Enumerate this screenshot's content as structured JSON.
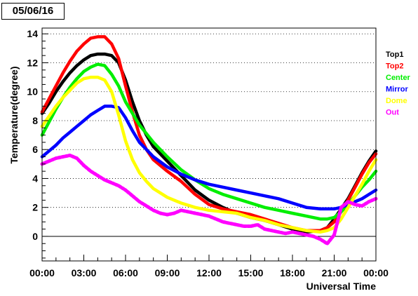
{
  "date_label": "05/06/16",
  "colors": {
    "Top1": "#000000",
    "Top2": "#ff0000",
    "Center": "#00ee00",
    "Mirror": "#0000ff",
    "Dome": "#ffff00",
    "Out": "#ff00ff"
  },
  "chart_data": {
    "type": "line",
    "title": "",
    "xlabel": "Universal Time",
    "ylabel": "Temperature(degree)",
    "xlim": [
      0,
      24
    ],
    "ylim": [
      -1.7,
      14.4
    ],
    "x_ticks": [
      {
        "v": 0,
        "label": "00:00"
      },
      {
        "v": 3,
        "label": "03:00"
      },
      {
        "v": 6,
        "label": "06:00"
      },
      {
        "v": 9,
        "label": "09:00"
      },
      {
        "v": 12,
        "label": "12:00"
      },
      {
        "v": 15,
        "label": "15:00"
      },
      {
        "v": 18,
        "label": "18:00"
      },
      {
        "v": 21,
        "label": "21:00"
      },
      {
        "v": 24,
        "label": "00:00"
      }
    ],
    "y_ticks": [
      0,
      2,
      4,
      6,
      8,
      10,
      12,
      14
    ],
    "grid": "horizontal-dotted",
    "zero_line": true,
    "legend": "right",
    "series": [
      {
        "name": "Top1",
        "color": "#000000",
        "x": [
          0,
          0.5,
          1,
          1.5,
          2,
          2.5,
          3,
          3.5,
          4,
          4.5,
          5,
          5.5,
          6,
          6.5,
          7,
          7.5,
          8,
          9,
          10,
          11,
          12,
          13,
          14,
          15,
          16,
          17,
          18,
          19,
          20,
          20.5,
          21,
          21.5,
          22,
          22.5,
          23,
          23.5,
          24
        ],
        "y": [
          8.5,
          9.2,
          10.0,
          10.7,
          11.3,
          11.8,
          12.2,
          12.5,
          12.6,
          12.6,
          12.5,
          12.0,
          10.8,
          9.3,
          8.0,
          7.0,
          6.2,
          5.2,
          4.2,
          3.2,
          2.5,
          2.0,
          1.6,
          1.3,
          1.1,
          0.8,
          0.5,
          0.3,
          0.4,
          0.6,
          1.2,
          1.9,
          2.6,
          3.5,
          4.4,
          5.2,
          5.9
        ]
      },
      {
        "name": "Top2",
        "color": "#ff0000",
        "x": [
          0,
          0.5,
          1,
          1.5,
          2,
          2.5,
          3,
          3.5,
          4,
          4.5,
          5,
          5.5,
          6,
          6.5,
          7,
          7.5,
          8,
          9,
          10,
          11,
          12,
          13,
          14,
          15,
          16,
          17,
          18,
          19,
          20,
          20.5,
          21,
          21.5,
          22,
          22.5,
          23,
          23.5,
          24
        ],
        "y": [
          8.6,
          9.5,
          10.4,
          11.3,
          12.1,
          12.8,
          13.3,
          13.7,
          13.8,
          13.8,
          13.3,
          12.3,
          10.4,
          8.6,
          7.0,
          6.0,
          5.3,
          4.5,
          3.8,
          2.9,
          2.2,
          1.9,
          1.7,
          1.5,
          1.2,
          0.9,
          0.6,
          0.4,
          0.4,
          0.6,
          1.0,
          1.7,
          2.5,
          3.4,
          4.3,
          5.1,
          5.7
        ]
      },
      {
        "name": "Center",
        "color": "#00ee00",
        "x": [
          0,
          0.5,
          1,
          1.5,
          2,
          2.5,
          3,
          3.5,
          4,
          4.5,
          5,
          5.5,
          6,
          6.5,
          7,
          7.5,
          8,
          9,
          10,
          11,
          12,
          13,
          14,
          15,
          16,
          17,
          18,
          19,
          20,
          20.5,
          21,
          21.5,
          22,
          22.5,
          23,
          23.5,
          24
        ],
        "y": [
          7.0,
          7.9,
          8.8,
          9.6,
          10.3,
          10.9,
          11.4,
          11.7,
          11.9,
          11.8,
          11.2,
          10.4,
          9.3,
          8.5,
          7.7,
          7.1,
          6.5,
          5.5,
          4.6,
          3.9,
          3.3,
          2.9,
          2.6,
          2.3,
          2.0,
          1.8,
          1.6,
          1.4,
          1.2,
          1.2,
          1.3,
          1.7,
          2.2,
          2.8,
          3.4,
          3.9,
          4.5
        ]
      },
      {
        "name": "Mirror",
        "color": "#0000ff",
        "x": [
          0,
          0.5,
          1,
          1.5,
          2,
          2.5,
          3,
          3.5,
          4,
          4.5,
          5,
          5.5,
          6,
          6.5,
          7,
          7.5,
          8,
          9,
          10,
          11,
          12,
          13,
          14,
          15,
          16,
          17,
          18,
          19,
          20,
          20.5,
          21,
          21.5,
          22,
          22.5,
          23,
          23.5,
          24
        ],
        "y": [
          5.5,
          5.9,
          6.3,
          6.8,
          7.2,
          7.6,
          8.0,
          8.4,
          8.7,
          9.0,
          9.0,
          8.9,
          8.2,
          7.3,
          6.5,
          6.0,
          5.5,
          4.8,
          4.3,
          3.9,
          3.6,
          3.4,
          3.2,
          3.0,
          2.8,
          2.6,
          2.3,
          2.0,
          1.9,
          1.9,
          1.9,
          2.0,
          2.2,
          2.4,
          2.6,
          2.9,
          3.2
        ]
      },
      {
        "name": "Dome",
        "color": "#ffff00",
        "x": [
          0,
          0.5,
          1,
          1.5,
          2,
          2.5,
          3,
          3.5,
          4,
          4.5,
          5,
          5.5,
          6,
          6.5,
          7,
          7.5,
          8,
          9,
          10,
          11,
          12,
          13,
          14,
          15,
          16,
          17,
          18,
          19,
          20,
          20.5,
          21,
          21.5,
          22,
          22.5,
          23,
          23.5,
          24
        ],
        "y": [
          7.6,
          8.3,
          9.0,
          9.6,
          10.1,
          10.6,
          10.9,
          11.0,
          11.0,
          10.8,
          10.0,
          8.4,
          6.6,
          5.3,
          4.4,
          3.8,
          3.3,
          2.7,
          2.3,
          2.0,
          1.8,
          1.7,
          1.6,
          1.3,
          1.1,
          0.8,
          0.6,
          0.4,
          0.3,
          0.4,
          0.6,
          1.2,
          2.0,
          2.8,
          3.6,
          4.5,
          5.3
        ]
      },
      {
        "name": "Out",
        "color": "#ff00ff",
        "x": [
          0,
          0.5,
          1,
          1.5,
          2,
          2.5,
          3,
          3.5,
          4,
          4.5,
          5,
          5.5,
          6,
          6.5,
          7,
          7.5,
          8,
          8.5,
          9,
          9.5,
          10,
          10.5,
          11,
          11.5,
          12,
          12.5,
          13,
          13.5,
          14,
          14.5,
          15,
          15.5,
          16,
          16.5,
          17,
          17.5,
          18,
          18.5,
          19,
          19.5,
          20,
          20.5,
          21,
          21.5,
          22,
          22.5,
          23,
          23.5,
          24
        ],
        "y": [
          5.0,
          5.2,
          5.4,
          5.5,
          5.6,
          5.4,
          4.9,
          4.5,
          4.2,
          3.9,
          3.7,
          3.5,
          3.2,
          2.8,
          2.4,
          2.1,
          1.8,
          1.6,
          1.5,
          1.6,
          1.8,
          1.7,
          1.6,
          1.5,
          1.4,
          1.2,
          1.0,
          0.9,
          0.8,
          0.7,
          0.7,
          0.8,
          0.5,
          0.4,
          0.3,
          0.2,
          0.3,
          0.2,
          0.1,
          0.0,
          -0.2,
          -0.5,
          0.1,
          2.0,
          2.4,
          2.2,
          2.1,
          2.4,
          2.6
        ]
      }
    ]
  }
}
